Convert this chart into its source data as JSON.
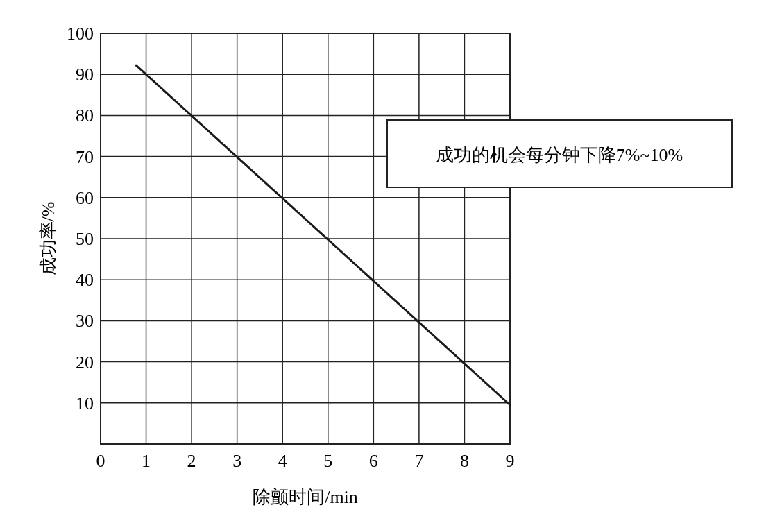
{
  "chart_data": {
    "type": "line",
    "xlabel": "除颤时间/min",
    "ylabel": "成功率/%",
    "x": [
      0.78,
      9
    ],
    "series": [
      {
        "color": "#1a1a1a",
        "values": [
          92.2,
          9.5
        ]
      }
    ],
    "xlim": [
      0,
      9
    ],
    "ylim": [
      0,
      100
    ],
    "xticks": [
      0,
      1,
      2,
      3,
      4,
      5,
      6,
      7,
      8,
      9
    ],
    "yticks": [
      10,
      20,
      30,
      40,
      50,
      60,
      70,
      80,
      90,
      100
    ],
    "grid": true,
    "annotations": [
      "成功的机会每分钟下降7%~10%"
    ]
  }
}
